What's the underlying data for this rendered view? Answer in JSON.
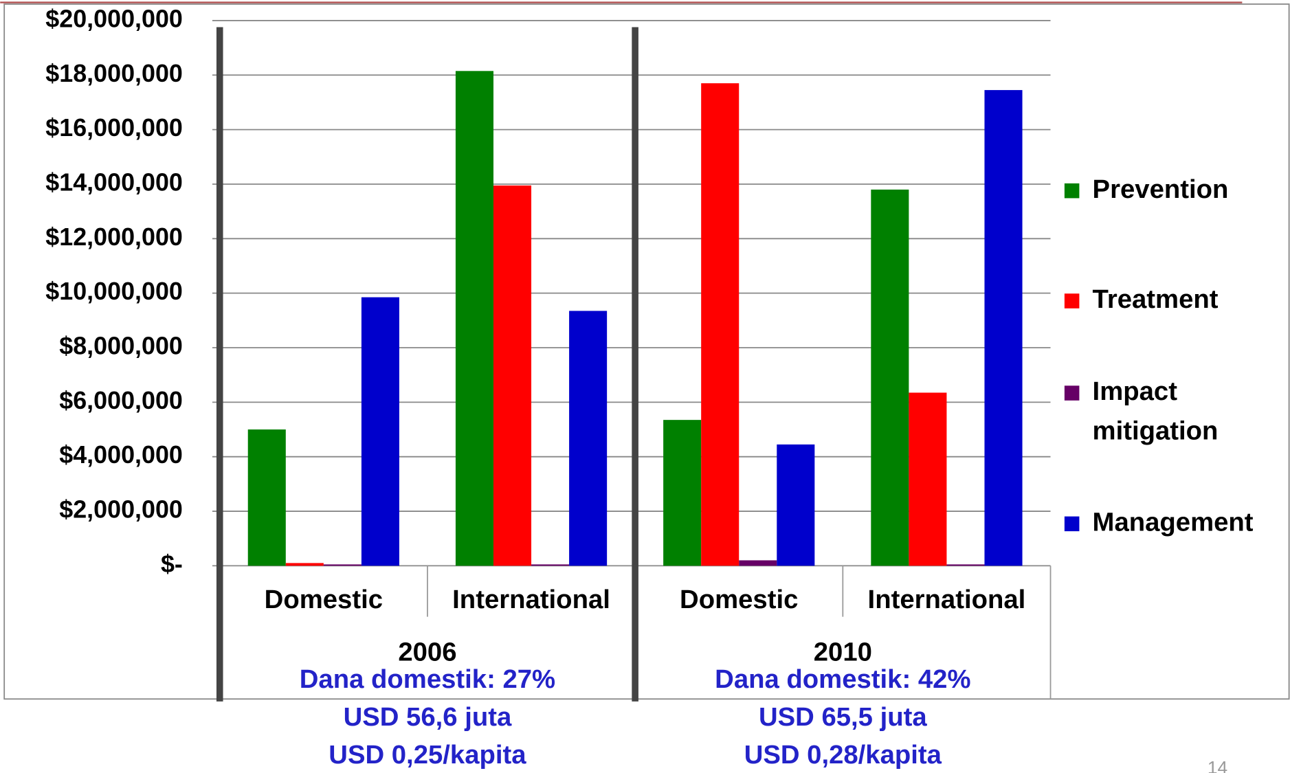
{
  "chart_data": {
    "type": "bar",
    "categories": [
      "Domestic",
      "International",
      "Domestic",
      "International"
    ],
    "groups": [
      {
        "label": "2006",
        "notes": [
          "Dana domestik: 27%",
          "USD 56,6 juta",
          "USD 0,25/kapita"
        ]
      },
      {
        "label": "2010",
        "notes": [
          "Dana domestik: 42%",
          "USD 65,5 juta",
          "USD 0,28/kapita"
        ]
      }
    ],
    "series": [
      {
        "name": "Prevention",
        "color": "#008000",
        "values": [
          5000000,
          18150000,
          5350000,
          13800000
        ]
      },
      {
        "name": "Treatment",
        "color": "#ff0000",
        "values": [
          100000,
          13950000,
          17700000,
          6350000
        ]
      },
      {
        "name": "Impact mitigation",
        "color": "#660066",
        "values": [
          50000,
          50000,
          200000,
          50000
        ]
      },
      {
        "name": "Management",
        "color": "#0000cc",
        "values": [
          9850000,
          9350000,
          4450000,
          17450000
        ]
      }
    ],
    "ylim": [
      0,
      20000000
    ],
    "yticks": [
      {
        "value": 0,
        "label": "$-"
      },
      {
        "value": 2000000,
        "label": "$2,000,000"
      },
      {
        "value": 4000000,
        "label": "$4,000,000"
      },
      {
        "value": 6000000,
        "label": "$6,000,000"
      },
      {
        "value": 8000000,
        "label": "$8,000,000"
      },
      {
        "value": 10000000,
        "label": "$10,000,000"
      },
      {
        "value": 12000000,
        "label": "$12,000,000"
      },
      {
        "value": 14000000,
        "label": "$14,000,000"
      },
      {
        "value": 16000000,
        "label": "$16,000,000"
      },
      {
        "value": 18000000,
        "label": "$18,000,000"
      },
      {
        "value": 20000000,
        "label": "$20,000,000"
      }
    ],
    "grid": true,
    "legend": "right",
    "page_number": "14"
  }
}
